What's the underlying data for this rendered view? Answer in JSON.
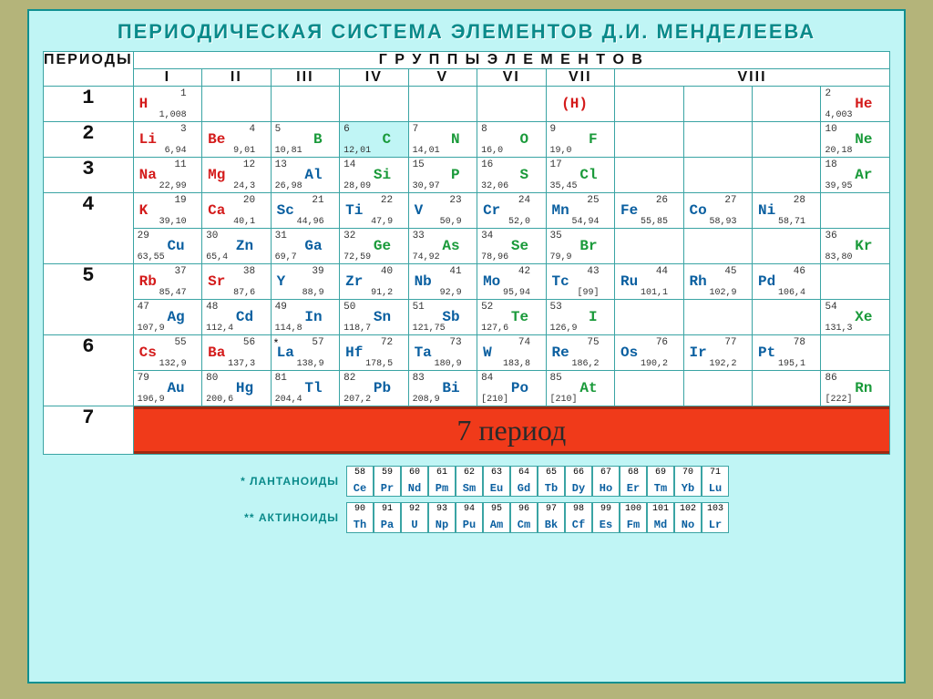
{
  "title": "ПЕРИОДИЧЕСКАЯ СИСТЕМА ЭЛЕМЕНТОВ Д.И. МЕНДЕЛЕЕВА",
  "groups_header": "Г Р У П П Ы   Э Л Е М Е Н Т О В",
  "periods_header": "ПЕРИОДЫ",
  "group_labels": [
    "I",
    "II",
    "III",
    "IV",
    "V",
    "VI",
    "VII",
    "VIII"
  ],
  "period_labels": [
    "1",
    "2",
    "3",
    "4",
    "5",
    "6",
    "7"
  ],
  "p7_overlay": "7 период",
  "lanth_label": "* ЛАНТАНОИДЫ",
  "act_label": "** АКТИНОИДЫ",
  "colors": {
    "bg": "#b4b47a",
    "panel": "#c0f5f5",
    "teal": "#109090",
    "red": "#d41b1b",
    "green": "#1a9a3a",
    "blue": "#0a5fa0",
    "band": "#f03a1a"
  },
  "lanth": [
    {
      "n": "58",
      "s": "Ce"
    },
    {
      "n": "59",
      "s": "Pr"
    },
    {
      "n": "60",
      "s": "Nd"
    },
    {
      "n": "61",
      "s": "Pm"
    },
    {
      "n": "62",
      "s": "Sm"
    },
    {
      "n": "63",
      "s": "Eu"
    },
    {
      "n": "64",
      "s": "Gd"
    },
    {
      "n": "65",
      "s": "Tb"
    },
    {
      "n": "66",
      "s": "Dy"
    },
    {
      "n": "67",
      "s": "Ho"
    },
    {
      "n": "68",
      "s": "Er"
    },
    {
      "n": "69",
      "s": "Tm"
    },
    {
      "n": "70",
      "s": "Yb"
    },
    {
      "n": "71",
      "s": "Lu"
    }
  ],
  "act": [
    {
      "n": "90",
      "s": "Th"
    },
    {
      "n": "91",
      "s": "Pa"
    },
    {
      "n": "92",
      "s": "U"
    },
    {
      "n": "93",
      "s": "Np"
    },
    {
      "n": "94",
      "s": "Pu"
    },
    {
      "n": "95",
      "s": "Am"
    },
    {
      "n": "96",
      "s": "Cm"
    },
    {
      "n": "97",
      "s": "Bk"
    },
    {
      "n": "98",
      "s": "Cf"
    },
    {
      "n": "99",
      "s": "Es"
    },
    {
      "n": "100",
      "s": "Fm"
    },
    {
      "n": "101",
      "s": "Md"
    },
    {
      "n": "102",
      "s": "No"
    },
    {
      "n": "103",
      "s": "Lr"
    }
  ],
  "elements": {
    "H": {
      "n": "1",
      "m": "1,008",
      "color": "red",
      "side": "L"
    },
    "H2": {
      "s": "(H)",
      "color": "red",
      "side": "C"
    },
    "He": {
      "n": "2",
      "m": "4,003",
      "color": "red",
      "side": "R"
    },
    "Li": {
      "n": "3",
      "m": "6,94",
      "color": "red",
      "side": "L"
    },
    "Be": {
      "n": "4",
      "m": "9,01",
      "color": "red",
      "side": "L"
    },
    "B": {
      "n": "5",
      "m": "10,81",
      "color": "green",
      "side": "R"
    },
    "C": {
      "n": "6",
      "m": "12,01",
      "color": "green",
      "side": "R"
    },
    "N": {
      "n": "7",
      "m": "14,01",
      "color": "green",
      "side": "R"
    },
    "O": {
      "n": "8",
      "m": "16,0",
      "color": "green",
      "side": "R"
    },
    "F": {
      "n": "9",
      "m": "19,0",
      "color": "green",
      "side": "R"
    },
    "Ne": {
      "n": "10",
      "m": "20,18",
      "color": "green",
      "side": "R"
    },
    "Na": {
      "n": "11",
      "m": "22,99",
      "color": "red",
      "side": "L"
    },
    "Mg": {
      "n": "12",
      "m": "24,3",
      "color": "red",
      "side": "L"
    },
    "Al": {
      "n": "13",
      "m": "26,98",
      "color": "blue",
      "side": "R"
    },
    "Si": {
      "n": "14",
      "m": "28,09",
      "color": "green",
      "side": "R"
    },
    "P": {
      "n": "15",
      "m": "30,97",
      "color": "green",
      "side": "R"
    },
    "S": {
      "n": "16",
      "m": "32,06",
      "color": "green",
      "side": "R"
    },
    "Cl": {
      "n": "17",
      "m": "35,45",
      "color": "green",
      "side": "R"
    },
    "Ar": {
      "n": "18",
      "m": "39,95",
      "color": "green",
      "side": "R"
    },
    "K": {
      "n": "19",
      "m": "39,10",
      "color": "red",
      "side": "L"
    },
    "Ca": {
      "n": "20",
      "m": "40,1",
      "color": "red",
      "side": "L"
    },
    "Sc": {
      "n": "21",
      "m": "44,96",
      "color": "blue",
      "side": "L"
    },
    "Ti": {
      "n": "22",
      "m": "47,9",
      "color": "blue",
      "side": "L"
    },
    "V": {
      "n": "23",
      "m": "50,9",
      "color": "blue",
      "side": "L"
    },
    "Cr": {
      "n": "24",
      "m": "52,0",
      "color": "blue",
      "side": "L"
    },
    "Mn": {
      "n": "25",
      "m": "54,94",
      "color": "blue",
      "side": "L"
    },
    "Fe": {
      "n": "26",
      "m": "55,85",
      "color": "blue",
      "side": "L"
    },
    "Co": {
      "n": "27",
      "m": "58,93",
      "color": "blue",
      "side": "L"
    },
    "Ni": {
      "n": "28",
      "m": "58,71",
      "color": "blue",
      "side": "L"
    },
    "Cu": {
      "n": "29",
      "m": "63,55",
      "color": "blue",
      "side": "R"
    },
    "Zn": {
      "n": "30",
      "m": "65,4",
      "color": "blue",
      "side": "R"
    },
    "Ga": {
      "n": "31",
      "m": "69,7",
      "color": "blue",
      "side": "R"
    },
    "Ge": {
      "n": "32",
      "m": "72,59",
      "color": "green",
      "side": "R"
    },
    "As": {
      "n": "33",
      "m": "74,92",
      "color": "green",
      "side": "R"
    },
    "Se": {
      "n": "34",
      "m": "78,96",
      "color": "green",
      "side": "R"
    },
    "Br": {
      "n": "35",
      "m": "79,9",
      "color": "green",
      "side": "R"
    },
    "Kr": {
      "n": "36",
      "m": "83,80",
      "color": "green",
      "side": "R"
    },
    "Rb": {
      "n": "37",
      "m": "85,47",
      "color": "red",
      "side": "L"
    },
    "Sr": {
      "n": "38",
      "m": "87,6",
      "color": "red",
      "side": "L"
    },
    "Y": {
      "n": "39",
      "m": "88,9",
      "color": "blue",
      "side": "L"
    },
    "Zr": {
      "n": "40",
      "m": "91,2",
      "color": "blue",
      "side": "L"
    },
    "Nb": {
      "n": "41",
      "m": "92,9",
      "color": "blue",
      "side": "L"
    },
    "Mo": {
      "n": "42",
      "m": "95,94",
      "color": "blue",
      "side": "L"
    },
    "Tc": {
      "n": "43",
      "m": "[99]",
      "color": "blue",
      "side": "L"
    },
    "Ru": {
      "n": "44",
      "m": "101,1",
      "color": "blue",
      "side": "L"
    },
    "Rh": {
      "n": "45",
      "m": "102,9",
      "color": "blue",
      "side": "L"
    },
    "Pd": {
      "n": "46",
      "m": "106,4",
      "color": "blue",
      "side": "L"
    },
    "Ag": {
      "n": "47",
      "m": "107,9",
      "color": "blue",
      "side": "R"
    },
    "Cd": {
      "n": "48",
      "m": "112,4",
      "color": "blue",
      "side": "R"
    },
    "In": {
      "n": "49",
      "m": "114,8",
      "color": "blue",
      "side": "R"
    },
    "Sn": {
      "n": "50",
      "m": "118,7",
      "color": "blue",
      "side": "R"
    },
    "Sb": {
      "n": "51",
      "m": "121,75",
      "color": "blue",
      "side": "R"
    },
    "Te": {
      "n": "52",
      "m": "127,6",
      "color": "green",
      "side": "R"
    },
    "I": {
      "n": "53",
      "m": "126,9",
      "color": "green",
      "side": "R"
    },
    "Xe": {
      "n": "54",
      "m": "131,3",
      "color": "green",
      "side": "R"
    },
    "Cs": {
      "n": "55",
      "m": "132,9",
      "color": "red",
      "side": "L"
    },
    "Ba": {
      "n": "56",
      "m": "137,3",
      "color": "red",
      "side": "L"
    },
    "La": {
      "n": "57",
      "m": "138,9",
      "color": "blue",
      "side": "L",
      "star": "*"
    },
    "Hf": {
      "n": "72",
      "m": "178,5",
      "color": "blue",
      "side": "L"
    },
    "Ta": {
      "n": "73",
      "m": "180,9",
      "color": "blue",
      "side": "L"
    },
    "W": {
      "n": "74",
      "m": "183,8",
      "color": "blue",
      "side": "L"
    },
    "Re": {
      "n": "75",
      "m": "186,2",
      "color": "blue",
      "side": "L"
    },
    "Os": {
      "n": "76",
      "m": "190,2",
      "color": "blue",
      "side": "L"
    },
    "Ir": {
      "n": "77",
      "m": "192,2",
      "color": "blue",
      "side": "L"
    },
    "Pt": {
      "n": "78",
      "m": "195,1",
      "color": "blue",
      "side": "L"
    },
    "Au": {
      "n": "79",
      "m": "196,9",
      "color": "blue",
      "side": "R"
    },
    "Hg": {
      "n": "80",
      "m": "200,6",
      "color": "blue",
      "side": "R"
    },
    "Tl": {
      "n": "81",
      "m": "204,4",
      "color": "blue",
      "side": "R"
    },
    "Pb": {
      "n": "82",
      "m": "207,2",
      "color": "blue",
      "side": "R"
    },
    "Bi": {
      "n": "83",
      "m": "208,9",
      "color": "blue",
      "side": "R"
    },
    "Po": {
      "n": "84",
      "m": "[210]",
      "color": "blue",
      "side": "R"
    },
    "At": {
      "n": "85",
      "m": "[210]",
      "color": "green",
      "side": "R"
    },
    "Rn": {
      "n": "86",
      "m": "[222]",
      "color": "green",
      "side": "R"
    }
  }
}
